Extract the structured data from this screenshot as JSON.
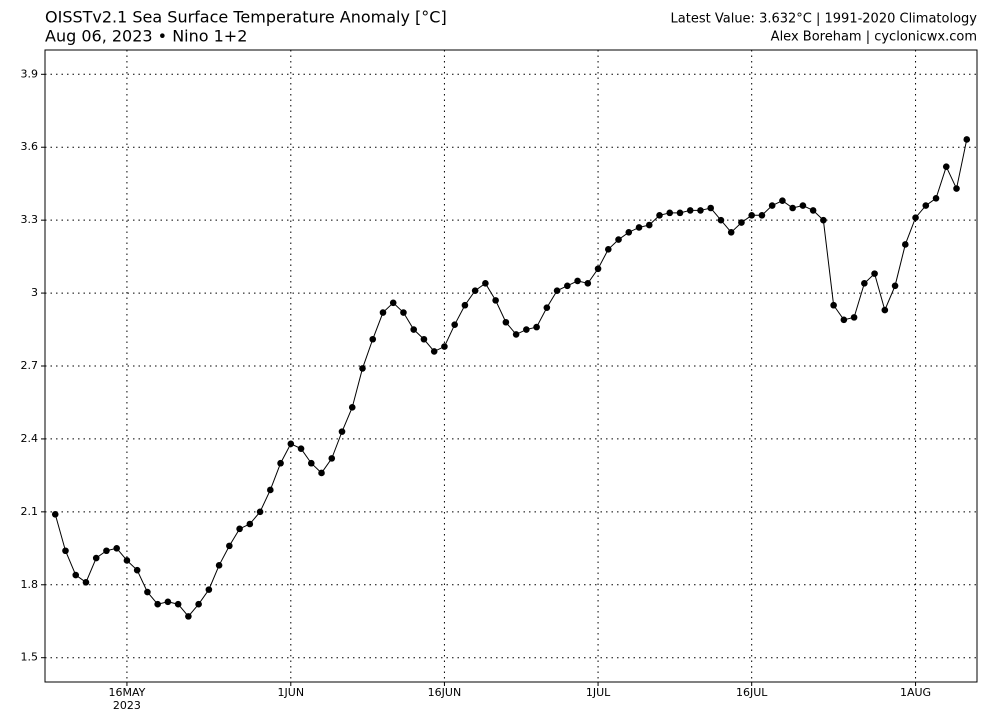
{
  "chart_data": {
    "type": "line",
    "title": "OISSTv2.1 Sea Surface Temperature Anomaly [°C]",
    "subtitle": "Aug 06, 2023 • Nino 1+2",
    "info": "Latest Value: 3.632°C | 1991-2020 Climatology",
    "credit": "Alex Boreham | cyclonicwx.com",
    "x": [
      "2023-05-09",
      "2023-05-10",
      "2023-05-11",
      "2023-05-12",
      "2023-05-13",
      "2023-05-14",
      "2023-05-15",
      "2023-05-16",
      "2023-05-17",
      "2023-05-18",
      "2023-05-19",
      "2023-05-20",
      "2023-05-21",
      "2023-05-22",
      "2023-05-23",
      "2023-05-24",
      "2023-05-25",
      "2023-05-26",
      "2023-05-27",
      "2023-05-28",
      "2023-05-29",
      "2023-05-30",
      "2023-05-31",
      "2023-06-01",
      "2023-06-02",
      "2023-06-03",
      "2023-06-04",
      "2023-06-05",
      "2023-06-06",
      "2023-06-07",
      "2023-06-08",
      "2023-06-09",
      "2023-06-10",
      "2023-06-11",
      "2023-06-12",
      "2023-06-13",
      "2023-06-14",
      "2023-06-15",
      "2023-06-16",
      "2023-06-17",
      "2023-06-18",
      "2023-06-19",
      "2023-06-20",
      "2023-06-21",
      "2023-06-22",
      "2023-06-23",
      "2023-06-24",
      "2023-06-25",
      "2023-06-26",
      "2023-06-27",
      "2023-06-28",
      "2023-06-29",
      "2023-06-30",
      "2023-07-01",
      "2023-07-02",
      "2023-07-03",
      "2023-07-04",
      "2023-07-05",
      "2023-07-06",
      "2023-07-07",
      "2023-07-08",
      "2023-07-09",
      "2023-07-10",
      "2023-07-11",
      "2023-07-12",
      "2023-07-13",
      "2023-07-14",
      "2023-07-15",
      "2023-07-16",
      "2023-07-17",
      "2023-07-18",
      "2023-07-19",
      "2023-07-20",
      "2023-07-21",
      "2023-07-22",
      "2023-07-23",
      "2023-07-24",
      "2023-07-25",
      "2023-07-26",
      "2023-07-27",
      "2023-07-28",
      "2023-07-29",
      "2023-07-30",
      "2023-07-31",
      "2023-08-01",
      "2023-08-02",
      "2023-08-03",
      "2023-08-04",
      "2023-08-05",
      "2023-08-06"
    ],
    "values": [
      2.09,
      1.94,
      1.84,
      1.81,
      1.91,
      1.94,
      1.95,
      1.9,
      1.86,
      1.77,
      1.72,
      1.73,
      1.72,
      1.67,
      1.72,
      1.78,
      1.88,
      1.96,
      2.03,
      2.05,
      2.1,
      2.19,
      2.3,
      2.38,
      2.36,
      2.3,
      2.26,
      2.32,
      2.43,
      2.53,
      2.69,
      2.81,
      2.92,
      2.96,
      2.92,
      2.85,
      2.81,
      2.76,
      2.78,
      2.87,
      2.95,
      3.01,
      3.04,
      2.97,
      2.88,
      2.83,
      2.85,
      2.86,
      2.94,
      3.01,
      3.03,
      3.05,
      3.04,
      3.1,
      3.18,
      3.22,
      3.25,
      3.27,
      3.28,
      3.32,
      3.33,
      3.33,
      3.34,
      3.34,
      3.35,
      3.3,
      3.25,
      3.29,
      3.32,
      3.32,
      3.36,
      3.38,
      3.35,
      3.36,
      3.34,
      3.3,
      2.95,
      2.89,
      2.9,
      3.04,
      3.08,
      2.93,
      3.03,
      3.2,
      3.31,
      3.36,
      3.39,
      3.52,
      3.43,
      3.632
    ],
    "color": "#000000",
    "xlim": [
      "2023-05-08",
      "2023-08-07"
    ],
    "xticks": [
      {
        "value": "2023-05-16",
        "label": "16MAY"
      },
      {
        "value": "2023-06-01",
        "label": "1JUN"
      },
      {
        "value": "2023-06-16",
        "label": "16JUN"
      },
      {
        "value": "2023-07-01",
        "label": "1JUL"
      },
      {
        "value": "2023-07-16",
        "label": "16JUL"
      },
      {
        "value": "2023-08-01",
        "label": "1AUG"
      }
    ],
    "x_year_label": "2023",
    "ylim": [
      1.4,
      4.0
    ],
    "yticks": [
      1.5,
      1.8,
      2.1,
      2.4,
      2.7,
      3,
      3.3,
      3.6,
      3.9
    ],
    "grid": true
  }
}
